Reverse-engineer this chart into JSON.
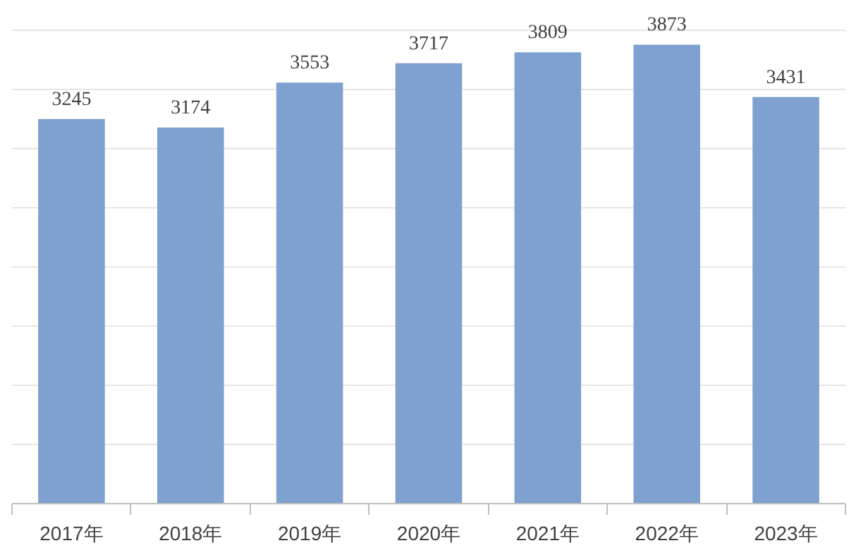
{
  "chart_data": {
    "type": "bar",
    "categories": [
      "2017年",
      "2018年",
      "2019年",
      "2020年",
      "2021年",
      "2022年",
      "2023年"
    ],
    "values": [
      3245,
      3174,
      3553,
      3717,
      3809,
      3873,
      3431
    ],
    "color": "#7fa1d0",
    "data_labels": true,
    "grid": "y",
    "tick_labels": "x",
    "yticks": [
      {
        "value": 0,
        "label": null
      },
      {
        "value": 500,
        "label": null
      },
      {
        "value": 1000,
        "label": null
      },
      {
        "value": 1500,
        "label": null
      },
      {
        "value": 2000,
        "label": null
      },
      {
        "value": 2500,
        "label": null
      },
      {
        "value": 3000,
        "label": null
      },
      {
        "value": 3500,
        "label": null
      },
      {
        "value": 4000,
        "label": null
      }
    ]
  }
}
